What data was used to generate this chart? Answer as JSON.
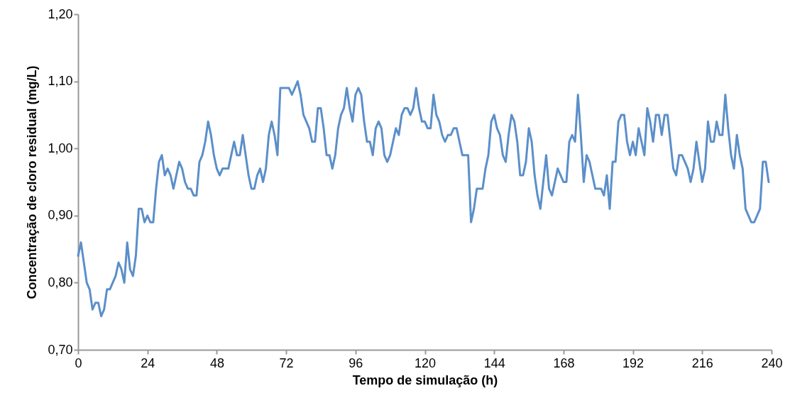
{
  "chart_data": {
    "type": "line",
    "xlabel": "Tempo de simulação (h)",
    "ylabel": "Concentração de cloro residual (mg/L)",
    "x": [
      0,
      1,
      2,
      3,
      4,
      5,
      6,
      7,
      8,
      9,
      10,
      11,
      12,
      13,
      14,
      15,
      16,
      17,
      18,
      19,
      20,
      21,
      22,
      23,
      24,
      25,
      26,
      27,
      28,
      29,
      30,
      31,
      32,
      33,
      34,
      35,
      36,
      37,
      38,
      39,
      40,
      41,
      42,
      43,
      44,
      45,
      46,
      47,
      48,
      49,
      50,
      51,
      52,
      53,
      54,
      55,
      56,
      57,
      58,
      59,
      60,
      61,
      62,
      63,
      64,
      65,
      66,
      67,
      68,
      69,
      70,
      71,
      72,
      73,
      74,
      75,
      76,
      77,
      78,
      79,
      80,
      81,
      82,
      83,
      84,
      85,
      86,
      87,
      88,
      89,
      90,
      91,
      92,
      93,
      94,
      95,
      96,
      97,
      98,
      99,
      100,
      101,
      102,
      103,
      104,
      105,
      106,
      107,
      108,
      109,
      110,
      111,
      112,
      113,
      114,
      115,
      116,
      117,
      118,
      119,
      120,
      121,
      122,
      123,
      124,
      125,
      126,
      127,
      128,
      129,
      130,
      131,
      132,
      133,
      134,
      135,
      136,
      137,
      138,
      139,
      140,
      141,
      142,
      143,
      144,
      145,
      146,
      147,
      148,
      149,
      150,
      151,
      152,
      153,
      154,
      155,
      156,
      157,
      158,
      159,
      160,
      161,
      162,
      163,
      164,
      165,
      166,
      167,
      168,
      169,
      170,
      171,
      172,
      173,
      174,
      175,
      176,
      177,
      178,
      179,
      180,
      181,
      182,
      183,
      184,
      185,
      186,
      187,
      188,
      189,
      190,
      191,
      192,
      193,
      194,
      195,
      196,
      197,
      198,
      199,
      200,
      201,
      202,
      203,
      204,
      205,
      206,
      207,
      208,
      209,
      210,
      211,
      212,
      213,
      214,
      215,
      216,
      217,
      218,
      219,
      220,
      221,
      222,
      223,
      224,
      225,
      226,
      227,
      228,
      229,
      230,
      231,
      232,
      233,
      234,
      235,
      236,
      237,
      238,
      239
    ],
    "series": [
      {
        "color": "#5b8fc9",
        "values": [
          0.84,
          0.86,
          0.83,
          0.8,
          0.79,
          0.76,
          0.77,
          0.77,
          0.75,
          0.76,
          0.79,
          0.79,
          0.8,
          0.81,
          0.83,
          0.82,
          0.8,
          0.86,
          0.82,
          0.81,
          0.84,
          0.91,
          0.91,
          0.89,
          0.9,
          0.89,
          0.89,
          0.94,
          0.98,
          0.99,
          0.96,
          0.97,
          0.96,
          0.94,
          0.96,
          0.98,
          0.97,
          0.95,
          0.94,
          0.94,
          0.93,
          0.93,
          0.98,
          0.99,
          1.01,
          1.04,
          1.02,
          0.99,
          0.97,
          0.96,
          0.97,
          0.97,
          0.97,
          0.99,
          1.01,
          0.99,
          0.99,
          1.02,
          0.99,
          0.96,
          0.94,
          0.94,
          0.96,
          0.97,
          0.95,
          0.97,
          1.02,
          1.04,
          1.02,
          0.99,
          1.09,
          1.09,
          1.09,
          1.09,
          1.08,
          1.09,
          1.1,
          1.08,
          1.05,
          1.04,
          1.03,
          1.01,
          1.01,
          1.06,
          1.06,
          1.03,
          0.99,
          0.99,
          0.97,
          0.99,
          1.03,
          1.05,
          1.06,
          1.09,
          1.06,
          1.04,
          1.08,
          1.09,
          1.08,
          1.04,
          1.01,
          1.01,
          0.99,
          1.03,
          1.04,
          1.03,
          0.99,
          0.98,
          0.99,
          1.01,
          1.03,
          1.02,
          1.05,
          1.06,
          1.06,
          1.05,
          1.06,
          1.09,
          1.06,
          1.04,
          1.04,
          1.03,
          1.03,
          1.08,
          1.05,
          1.04,
          1.02,
          1.01,
          1.02,
          1.02,
          1.03,
          1.03,
          1.01,
          0.99,
          0.99,
          0.99,
          0.89,
          0.91,
          0.94,
          0.94,
          0.94,
          0.97,
          0.99,
          1.04,
          1.05,
          1.03,
          1.02,
          0.99,
          0.98,
          1.02,
          1.05,
          1.04,
          1.01,
          0.96,
          0.96,
          0.98,
          1.03,
          1.01,
          0.96,
          0.93,
          0.91,
          0.95,
          0.99,
          0.94,
          0.93,
          0.95,
          0.97,
          0.96,
          0.95,
          0.95,
          1.01,
          1.02,
          1.01,
          1.08,
          1.02,
          0.95,
          0.99,
          0.98,
          0.96,
          0.94,
          0.94,
          0.94,
          0.93,
          0.96,
          0.91,
          0.98,
          0.98,
          1.04,
          1.05,
          1.05,
          1.01,
          0.99,
          1.01,
          0.99,
          1.03,
          1.01,
          0.99,
          1.06,
          1.04,
          1.01,
          1.05,
          1.05,
          1.02,
          1.05,
          1.05,
          1.01,
          0.97,
          0.96,
          0.99,
          0.99,
          0.98,
          0.97,
          0.95,
          0.97,
          1.01,
          0.98,
          0.95,
          0.97,
          1.04,
          1.01,
          1.01,
          1.04,
          1.02,
          1.02,
          1.08,
          1.03,
          0.99,
          0.97,
          1.02,
          0.99,
          0.97,
          0.91,
          0.9,
          0.89,
          0.89,
          0.9,
          0.91,
          0.98,
          0.98,
          0.95
        ]
      }
    ],
    "xlim": [
      0,
      240
    ],
    "xticks": [
      0,
      24,
      48,
      72,
      96,
      120,
      144,
      168,
      192,
      216,
      240
    ],
    "ylim": [
      0.7,
      1.2
    ],
    "yticks": [
      {
        "value": 0.7,
        "label": "0,70"
      },
      {
        "value": 0.8,
        "label": "0,80"
      },
      {
        "value": 0.9,
        "label": "0,90"
      },
      {
        "value": 1.0,
        "label": "1,00"
      },
      {
        "value": 1.1,
        "label": "1,10"
      },
      {
        "value": 1.2,
        "label": "1,20"
      }
    ],
    "grid": false,
    "marker": "none",
    "line_style": "solid"
  }
}
